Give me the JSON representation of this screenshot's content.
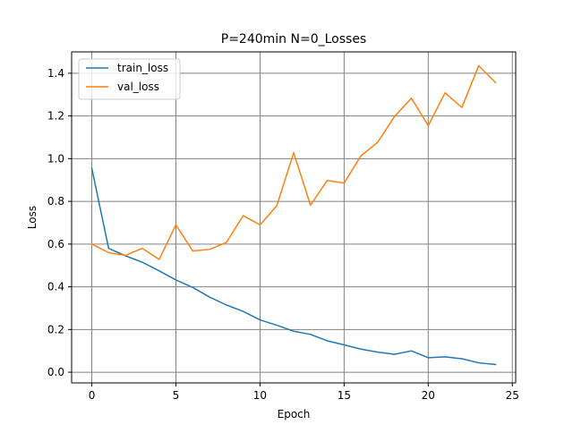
{
  "chart_data": {
    "type": "line",
    "title": "P=240min N=0_Losses",
    "xlabel": "Epoch",
    "ylabel": "Loss",
    "xlim": [
      -1.2,
      25.2
    ],
    "ylim": [
      -0.05,
      1.5
    ],
    "x_ticks": [
      0,
      5,
      10,
      15,
      20,
      25
    ],
    "y_ticks": [
      0.0,
      0.2,
      0.4,
      0.6,
      0.8,
      1.0,
      1.2,
      1.4
    ],
    "x_tick_labels": [
      "0",
      "5",
      "10",
      "15",
      "20",
      "25"
    ],
    "y_tick_labels": [
      "0.0",
      "0.2",
      "0.4",
      "0.6",
      "0.8",
      "1.0",
      "1.2",
      "1.4"
    ],
    "grid": true,
    "legend_position": "top-left",
    "x": [
      0,
      1,
      2,
      3,
      4,
      5,
      6,
      7,
      8,
      9,
      10,
      11,
      12,
      13,
      14,
      15,
      16,
      17,
      18,
      19,
      20,
      21,
      22,
      23,
      24
    ],
    "series": [
      {
        "name": "train_loss",
        "color": "#1f77b4",
        "values": [
          0.955,
          0.58,
          0.545,
          0.515,
          0.475,
          0.432,
          0.397,
          0.352,
          0.315,
          0.285,
          0.245,
          0.22,
          0.192,
          0.177,
          0.147,
          0.128,
          0.108,
          0.094,
          0.084,
          0.1,
          0.068,
          0.072,
          0.063,
          0.044,
          0.036
        ]
      },
      {
        "name": "val_loss",
        "color": "#ff7f0e",
        "values": [
          0.6,
          0.56,
          0.547,
          0.58,
          0.528,
          0.69,
          0.568,
          0.575,
          0.608,
          0.733,
          0.69,
          0.78,
          1.028,
          0.782,
          0.898,
          0.886,
          1.013,
          1.077,
          1.198,
          1.283,
          1.155,
          1.308,
          1.24,
          1.435,
          1.356
        ]
      }
    ]
  }
}
